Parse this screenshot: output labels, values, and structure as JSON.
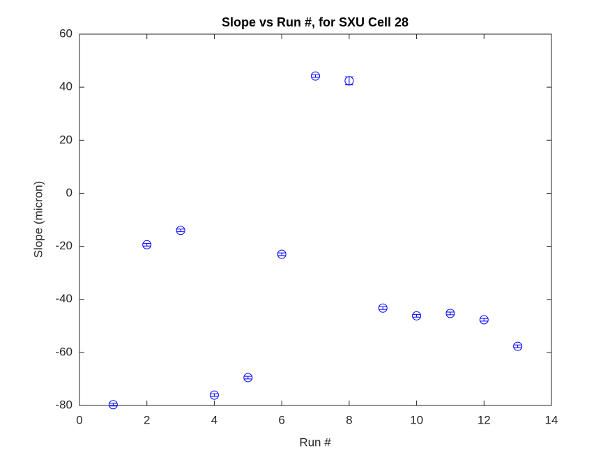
{
  "chart_data": {
    "type": "errorbar",
    "title": "Slope vs Run #, for SXU Cell 28",
    "xlabel": "Run #",
    "ylabel": "Slope (micron)",
    "x": [
      1,
      2,
      3,
      4,
      5,
      6,
      7,
      8,
      9,
      10,
      11,
      12,
      13
    ],
    "series": [
      {
        "color": "#0000ff",
        "values": [
          -79.7,
          -19.4,
          -14,
          -76.1,
          -69.5,
          -23,
          44.2,
          42.4,
          -43.3,
          -46.2,
          -45.3,
          -47.7,
          -57.7
        ],
        "errors": [
          0.5,
          0.5,
          0.5,
          0.5,
          0.5,
          0.5,
          0.5,
          1.5,
          0.5,
          0.5,
          0.5,
          0.5,
          0.5
        ]
      }
    ],
    "xlim": [
      0,
      14
    ],
    "xticks": [
      0,
      2,
      4,
      6,
      8,
      10,
      12,
      14
    ],
    "ylim": [
      -80,
      60
    ],
    "yticks": [
      -80,
      -60,
      -40,
      -20,
      0,
      20,
      40,
      60
    ],
    "grid": false
  }
}
